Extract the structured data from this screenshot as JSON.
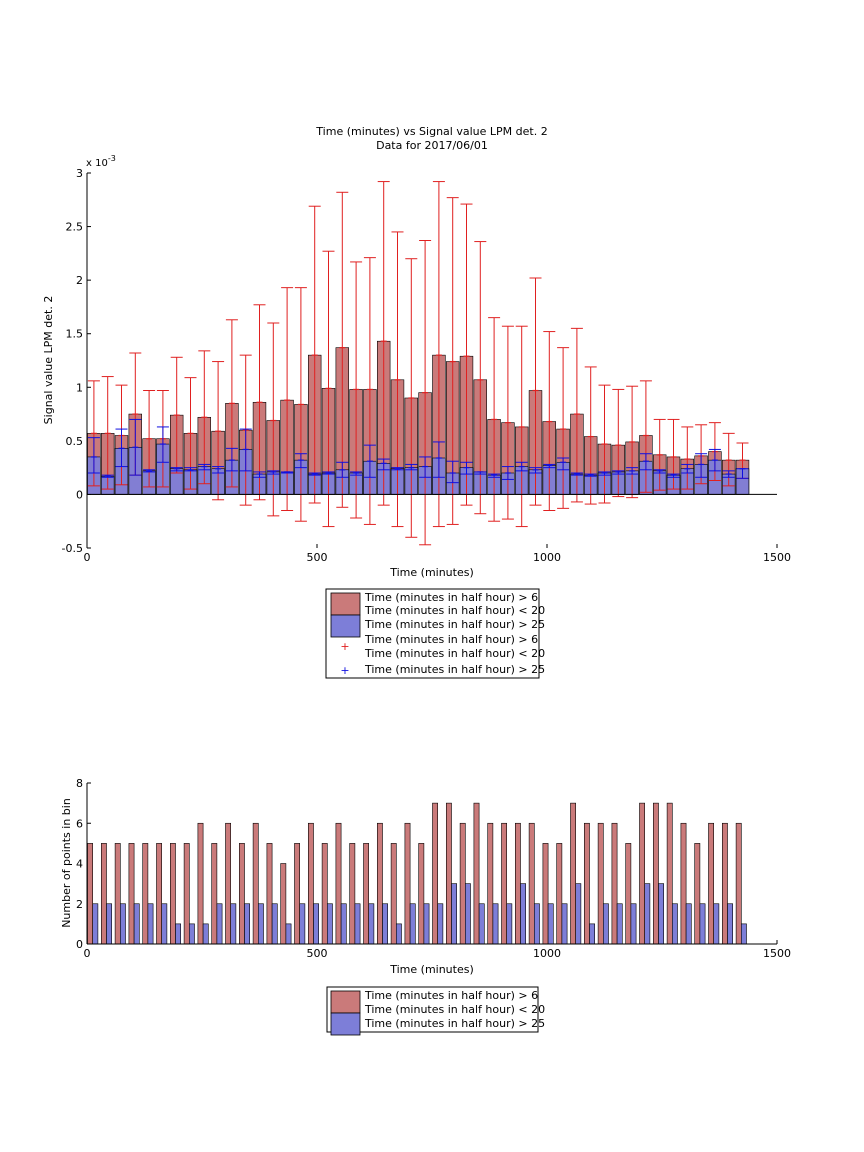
{
  "colors": {
    "red_fill": "#ca7a7a",
    "blue_fill": "#7d7ed8",
    "red_err": "#e02020",
    "blue_err": "#1010e0",
    "axis": "#000000"
  },
  "chart_data": [
    {
      "type": "bar",
      "title": "Time (minutes) vs Signal value LPM det. 2",
      "subtitle": "Data for 2017/06/01",
      "xlabel": "Time (minutes)",
      "ylabel": "Signal value LPM det. 2",
      "y_exponent_label": "x 10",
      "y_exponent_power": "-3",
      "xlim": [
        0,
        1500
      ],
      "ylim": [
        -0.5,
        3
      ],
      "x_ticks": [
        "0",
        "500",
        "1000",
        "1500"
      ],
      "x_tick_values": [
        0,
        500,
        1000,
        1500
      ],
      "y_ticks": [
        "-0.5",
        "0",
        "0.5",
        "1",
        "1.5",
        "2",
        "2.5",
        "3"
      ],
      "y_tick_values": [
        -0.5,
        0,
        0.5,
        1,
        1.5,
        2,
        2.5,
        3
      ],
      "grid": false,
      "legend_position": "below",
      "bin_width_minutes": 30,
      "x": [
        15,
        45,
        75,
        105,
        135,
        165,
        195,
        225,
        255,
        285,
        315,
        345,
        375,
        405,
        435,
        465,
        495,
        525,
        555,
        585,
        615,
        645,
        675,
        705,
        735,
        765,
        795,
        825,
        855,
        885,
        915,
        945,
        975,
        1005,
        1035,
        1065,
        1095,
        1125,
        1155,
        1185,
        1215,
        1245,
        1275,
        1305,
        1335,
        1365,
        1395,
        1425
      ],
      "series": [
        {
          "name": "Time (minutes in half hour) > 6",
          "name_line2": "Time (minutes in half hour) < 20",
          "values": [
            0.57,
            0.57,
            0.55,
            0.75,
            0.52,
            0.52,
            0.74,
            0.57,
            0.72,
            0.59,
            0.85,
            0.6,
            0.86,
            0.69,
            0.88,
            0.84,
            1.3,
            0.99,
            1.37,
            0.98,
            0.98,
            1.43,
            1.07,
            0.9,
            0.95,
            1.3,
            1.24,
            1.29,
            1.07,
            0.7,
            0.67,
            0.63,
            0.97,
            0.68,
            0.61,
            0.75,
            0.54,
            0.47,
            0.46,
            0.49,
            0.55,
            0.37,
            0.35,
            0.33,
            0.36,
            0.4,
            0.32,
            0.32
          ],
          "err_low": [
            0.08,
            0.05,
            0.09,
            0.18,
            0.07,
            0.07,
            0.2,
            0.05,
            0.1,
            -0.05,
            0.07,
            -0.1,
            -0.05,
            -0.2,
            -0.15,
            -0.25,
            -0.08,
            -0.3,
            -0.12,
            -0.22,
            -0.28,
            -0.1,
            -0.3,
            -0.4,
            -0.47,
            -0.3,
            -0.28,
            -0.1,
            -0.18,
            -0.25,
            -0.23,
            -0.3,
            -0.1,
            -0.15,
            -0.13,
            -0.07,
            -0.09,
            -0.08,
            -0.02,
            -0.03,
            0.02,
            0.04,
            0.05,
            0.05,
            0.1,
            0.13,
            0.08,
            0.15
          ],
          "err_high": [
            1.06,
            1.1,
            1.02,
            1.32,
            0.97,
            0.97,
            1.28,
            1.09,
            1.34,
            1.24,
            1.63,
            1.3,
            1.77,
            1.6,
            1.93,
            1.93,
            2.69,
            2.27,
            2.82,
            2.17,
            2.21,
            2.92,
            2.45,
            2.2,
            2.37,
            2.92,
            2.77,
            2.71,
            2.36,
            1.65,
            1.57,
            1.57,
            2.02,
            1.52,
            1.37,
            1.55,
            1.19,
            1.02,
            0.98,
            1.01,
            1.06,
            0.7,
            0.7,
            0.63,
            0.65,
            0.67,
            0.57,
            0.48
          ]
        },
        {
          "name": "Time (minutes in half hour) > 25",
          "values": [
            0.35,
            0.17,
            0.43,
            0.44,
            0.22,
            0.47,
            0.24,
            0.23,
            0.26,
            0.24,
            0.32,
            0.42,
            0.19,
            0.21,
            0.21,
            0.32,
            0.19,
            0.2,
            0.23,
            0.2,
            0.31,
            0.29,
            0.24,
            0.25,
            0.26,
            0.34,
            0.2,
            0.25,
            0.21,
            0.18,
            0.2,
            0.26,
            0.23,
            0.27,
            0.3,
            0.19,
            0.18,
            0.2,
            0.21,
            0.22,
            0.31,
            0.22,
            0.18,
            0.24,
            0.28,
            0.32,
            0.19,
            0.24
          ],
          "err_low": [
            0.2,
            0.16,
            0.26,
            0.18,
            0.21,
            0.3,
            0.22,
            0.22,
            0.23,
            0.2,
            0.22,
            0.22,
            0.16,
            0.19,
            0.2,
            0.25,
            0.18,
            0.19,
            0.16,
            0.18,
            0.16,
            0.23,
            0.23,
            0.23,
            0.16,
            0.16,
            0.11,
            0.19,
            0.19,
            0.16,
            0.14,
            0.22,
            0.2,
            0.25,
            0.23,
            0.18,
            0.17,
            0.18,
            0.19,
            0.19,
            0.23,
            0.2,
            0.16,
            0.2,
            0.16,
            0.22,
            0.16,
            0.15
          ],
          "err_high": [
            0.53,
            0.18,
            0.61,
            0.7,
            0.23,
            0.63,
            0.25,
            0.25,
            0.28,
            0.26,
            0.43,
            0.61,
            0.21,
            0.22,
            0.21,
            0.38,
            0.2,
            0.21,
            0.3,
            0.21,
            0.46,
            0.33,
            0.25,
            0.28,
            0.35,
            0.49,
            0.31,
            0.3,
            0.21,
            0.19,
            0.26,
            0.3,
            0.25,
            0.28,
            0.34,
            0.2,
            0.19,
            0.21,
            0.22,
            0.25,
            0.38,
            0.23,
            0.19,
            0.28,
            0.38,
            0.42,
            0.22,
            0.24
          ]
        }
      ],
      "legend": [
        {
          "line1": "Time (minutes in half hour) > 6",
          "line2": "Time (minutes in half hour) < 20",
          "line3": "Time (minutes in half hour) > 25",
          "kind": "patches"
        },
        {
          "line1": "Time (minutes in half hour) > 6",
          "line2": "Time (minutes in half hour) < 20",
          "line3": "Time (minutes in half hour) > 25",
          "kind": "markers"
        }
      ]
    },
    {
      "type": "bar",
      "xlabel": "Time (minutes)",
      "ylabel": "Number of points in bin",
      "xlim": [
        0,
        1500
      ],
      "ylim": [
        0,
        8
      ],
      "x_ticks": [
        "0",
        "500",
        "1000",
        "1500"
      ],
      "x_tick_values": [
        0,
        500,
        1000,
        1500
      ],
      "y_ticks": [
        "0",
        "2",
        "4",
        "6",
        "8"
      ],
      "y_tick_values": [
        0,
        2,
        4,
        6,
        8
      ],
      "grid": false,
      "legend_position": "below",
      "x": [
        15,
        45,
        75,
        105,
        135,
        165,
        195,
        225,
        255,
        285,
        315,
        345,
        375,
        405,
        435,
        465,
        495,
        525,
        555,
        585,
        615,
        645,
        675,
        705,
        735,
        765,
        795,
        825,
        855,
        885,
        915,
        945,
        975,
        1005,
        1035,
        1065,
        1095,
        1125,
        1155,
        1185,
        1215,
        1245,
        1275,
        1305,
        1335,
        1365,
        1395,
        1425
      ],
      "series": [
        {
          "name": "Time (minutes in half hour) > 6",
          "name_line2": "Time (minutes in half hour) < 20",
          "values": [
            5,
            5,
            5,
            5,
            5,
            5,
            5,
            5,
            6,
            5,
            6,
            5,
            6,
            5,
            4,
            5,
            6,
            5,
            6,
            5,
            5,
            6,
            5,
            6,
            5,
            7,
            7,
            6,
            7,
            6,
            6,
            6,
            6,
            5,
            5,
            7,
            6,
            6,
            6,
            5,
            7,
            7,
            7,
            6,
            5,
            6,
            6,
            6
          ]
        },
        {
          "name": "Time (minutes in half hour) > 25",
          "values": [
            2,
            2,
            2,
            2,
            2,
            2,
            1,
            1,
            1,
            2,
            2,
            2,
            2,
            2,
            1,
            2,
            2,
            2,
            2,
            2,
            2,
            2,
            1,
            2,
            2,
            2,
            3,
            3,
            2,
            2,
            2,
            3,
            2,
            2,
            2,
            3,
            1,
            2,
            2,
            2,
            3,
            3,
            2,
            2,
            2,
            2,
            2,
            1
          ]
        }
      ],
      "legend": [
        {
          "line1": "Time (minutes in half hour) > 6",
          "line2": "Time (minutes in half hour) < 20",
          "line3": "Time (minutes in half hour) > 25",
          "kind": "patches"
        }
      ]
    }
  ]
}
